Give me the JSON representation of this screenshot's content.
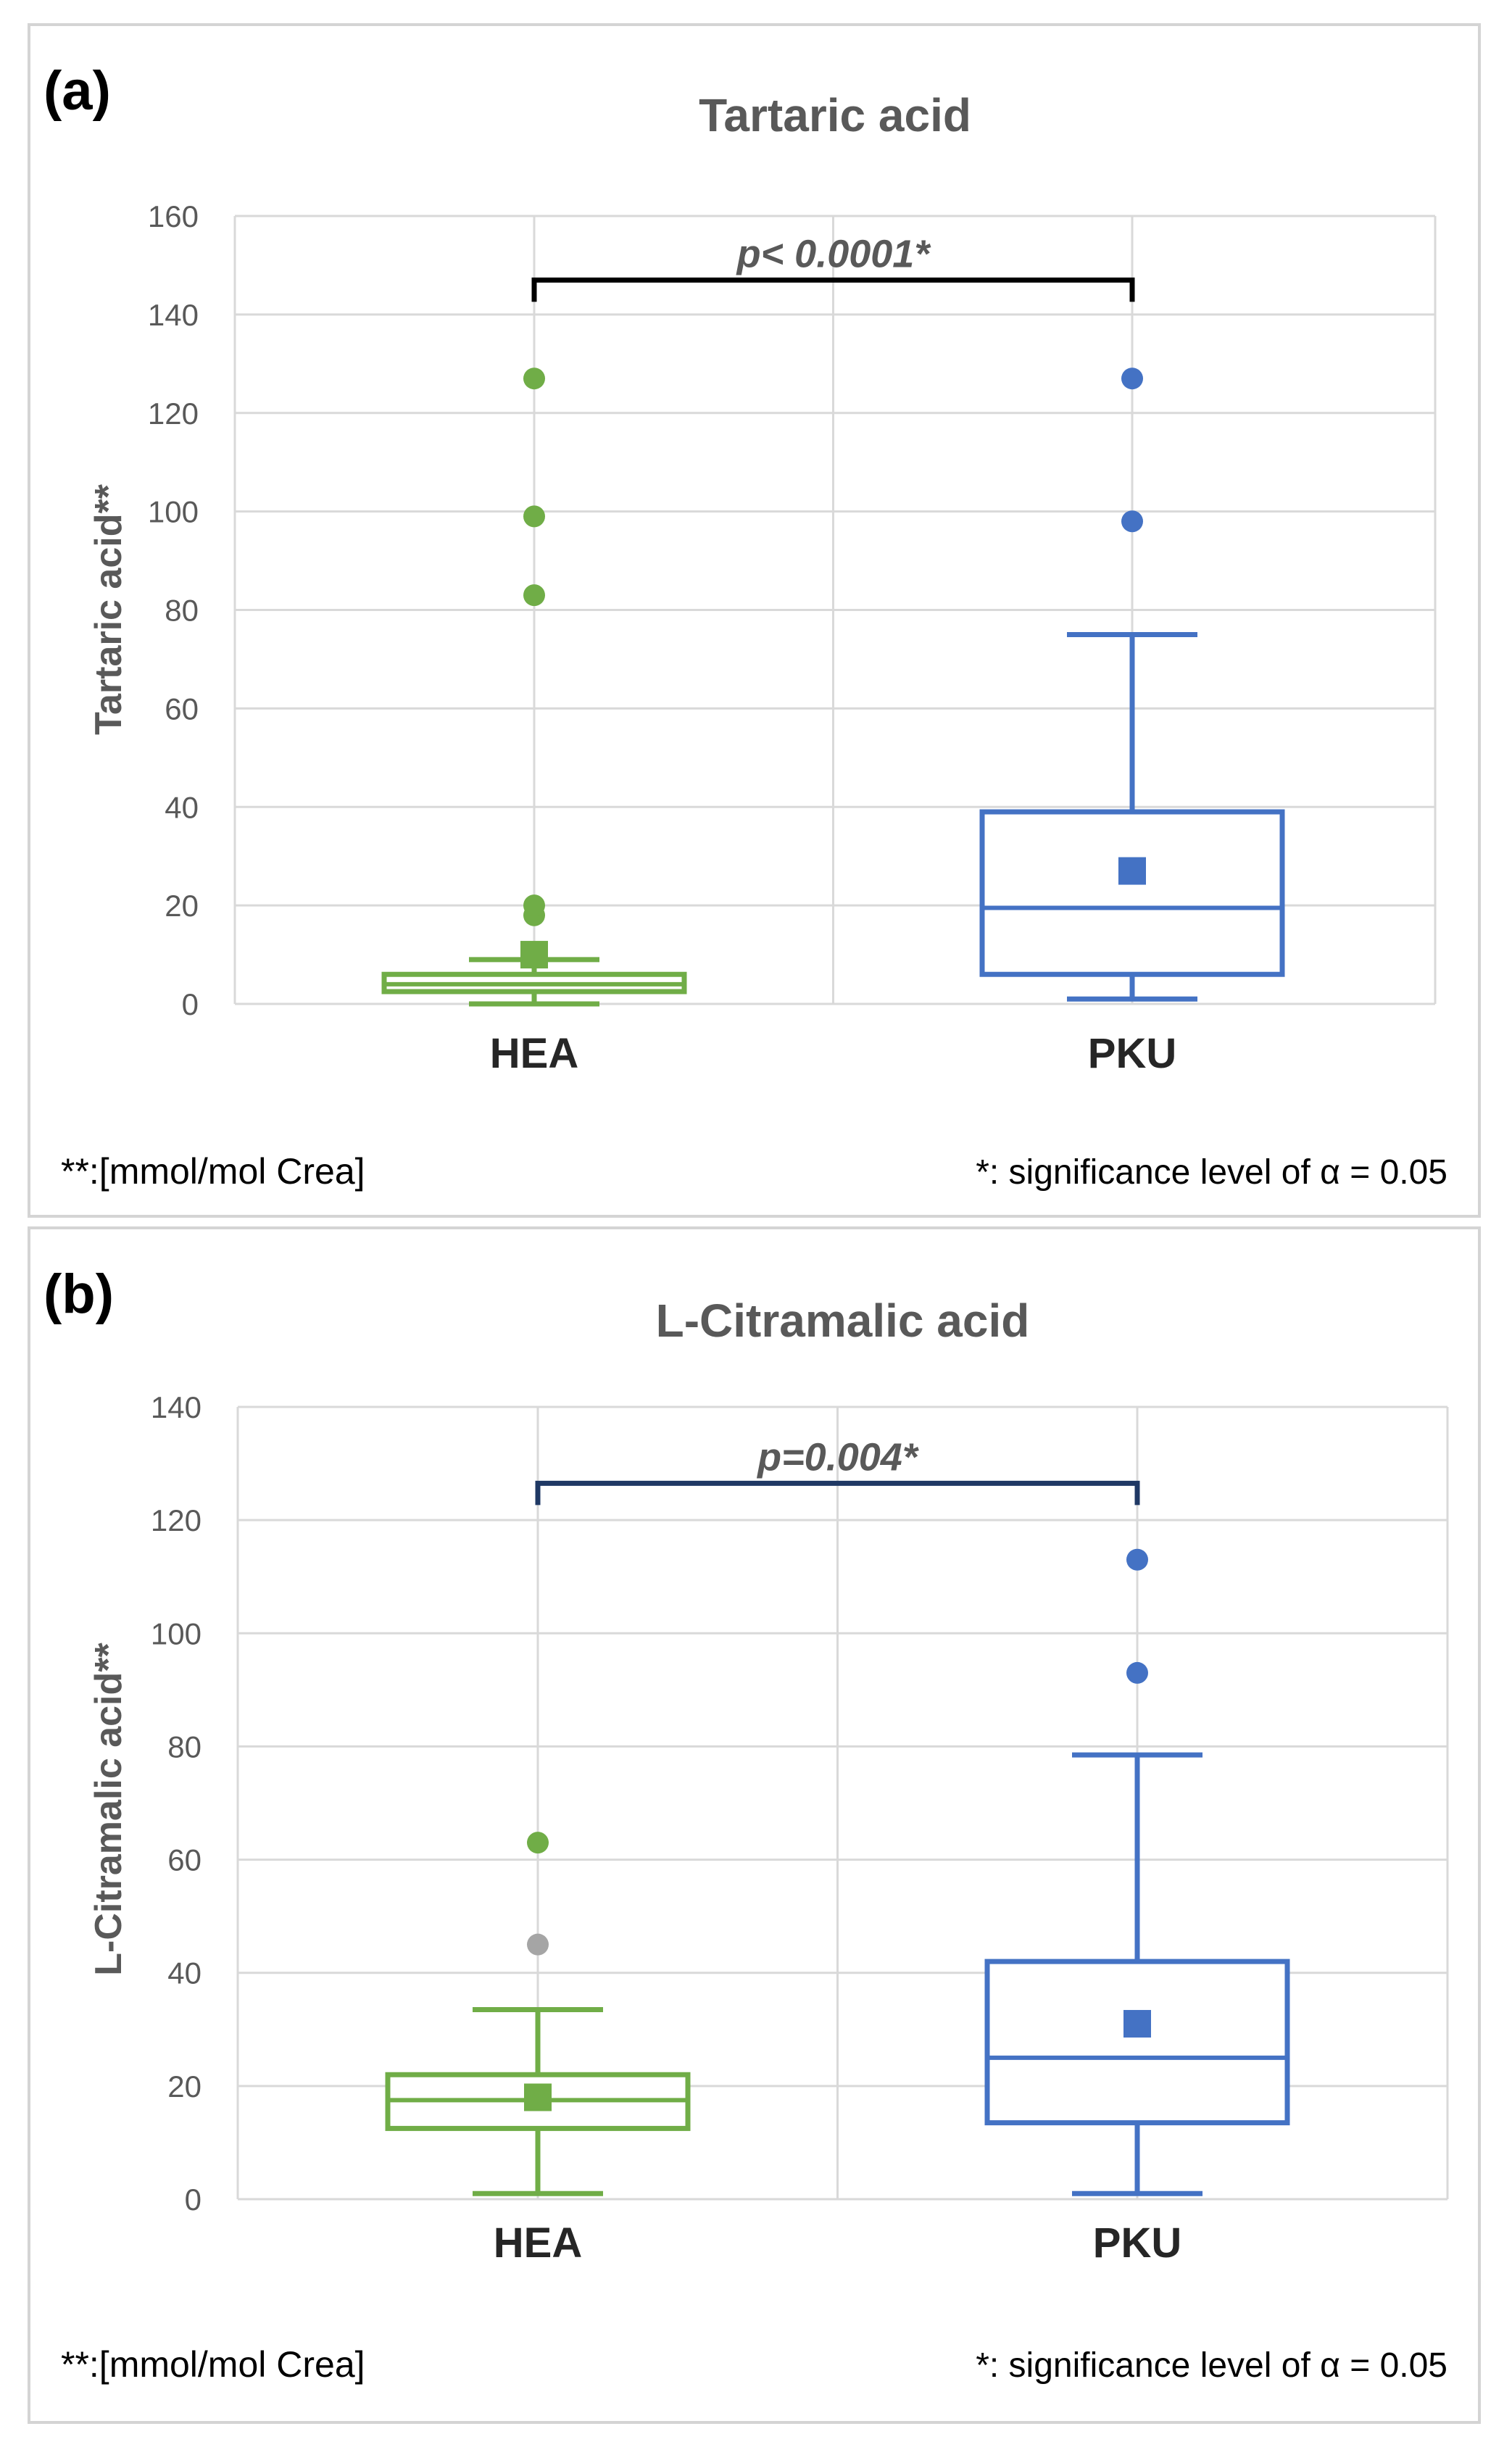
{
  "figure": [
    {
      "id": "a",
      "panel_label": "(a)",
      "footnote_left": "**:[mmol/mol Crea]",
      "footnote_right": "*: significance level of α = 0.05"
    },
    {
      "id": "b",
      "panel_label": "(b)",
      "footnote_left": "**:[mmol/mol Crea]",
      "footnote_right": "*: significance level of α = 0.05"
    }
  ],
  "colors": {
    "HEA": "#70ad47",
    "PKU": "#4472c4",
    "grid": "#d9d9d9",
    "text": "#595959",
    "bracket_a": "#000000",
    "bracket_b": "#1f3864",
    "outlier_alt": "#a5a5a5"
  },
  "chart_data": [
    {
      "type": "box",
      "title": "Tartaric acid",
      "xlabel": "",
      "ylabel": "Tartaric acid**",
      "ylim": [
        0,
        160
      ],
      "yticks": [
        0,
        20,
        40,
        60,
        80,
        100,
        120,
        140,
        160
      ],
      "grid": true,
      "categories": [
        "HEA",
        "PKU"
      ],
      "series": [
        {
          "name": "HEA",
          "min": 0,
          "q1": 2.5,
          "median": 4,
          "q3": 6,
          "max": 9,
          "mean": 10,
          "outliers": [
            18,
            20,
            83,
            99,
            127
          ]
        },
        {
          "name": "PKU",
          "min": 1,
          "q1": 6,
          "median": 19.5,
          "q3": 39,
          "max": 75,
          "mean": 27,
          "outliers": [
            98,
            127
          ]
        }
      ],
      "annotation": {
        "text": "p< 0.0001*",
        "y": 147
      }
    },
    {
      "type": "box",
      "title": "L-Citramalic acid",
      "xlabel": "",
      "ylabel": "L-Citramalic acid**",
      "ylim": [
        0,
        140
      ],
      "yticks": [
        0,
        20,
        40,
        60,
        80,
        100,
        120,
        140
      ],
      "grid": true,
      "categories": [
        "HEA",
        "PKU"
      ],
      "series": [
        {
          "name": "HEA",
          "min": 1,
          "q1": 12.5,
          "median": 17.5,
          "q3": 22,
          "max": 33.5,
          "mean": 18,
          "outliers": [
            45,
            63
          ]
        },
        {
          "name": "PKU",
          "min": 1,
          "q1": 13.5,
          "median": 25,
          "q3": 42,
          "max": 78.5,
          "mean": 31,
          "outliers": [
            93,
            113
          ]
        }
      ],
      "annotation": {
        "text": "p=0.004*",
        "y": 126.5
      }
    }
  ]
}
